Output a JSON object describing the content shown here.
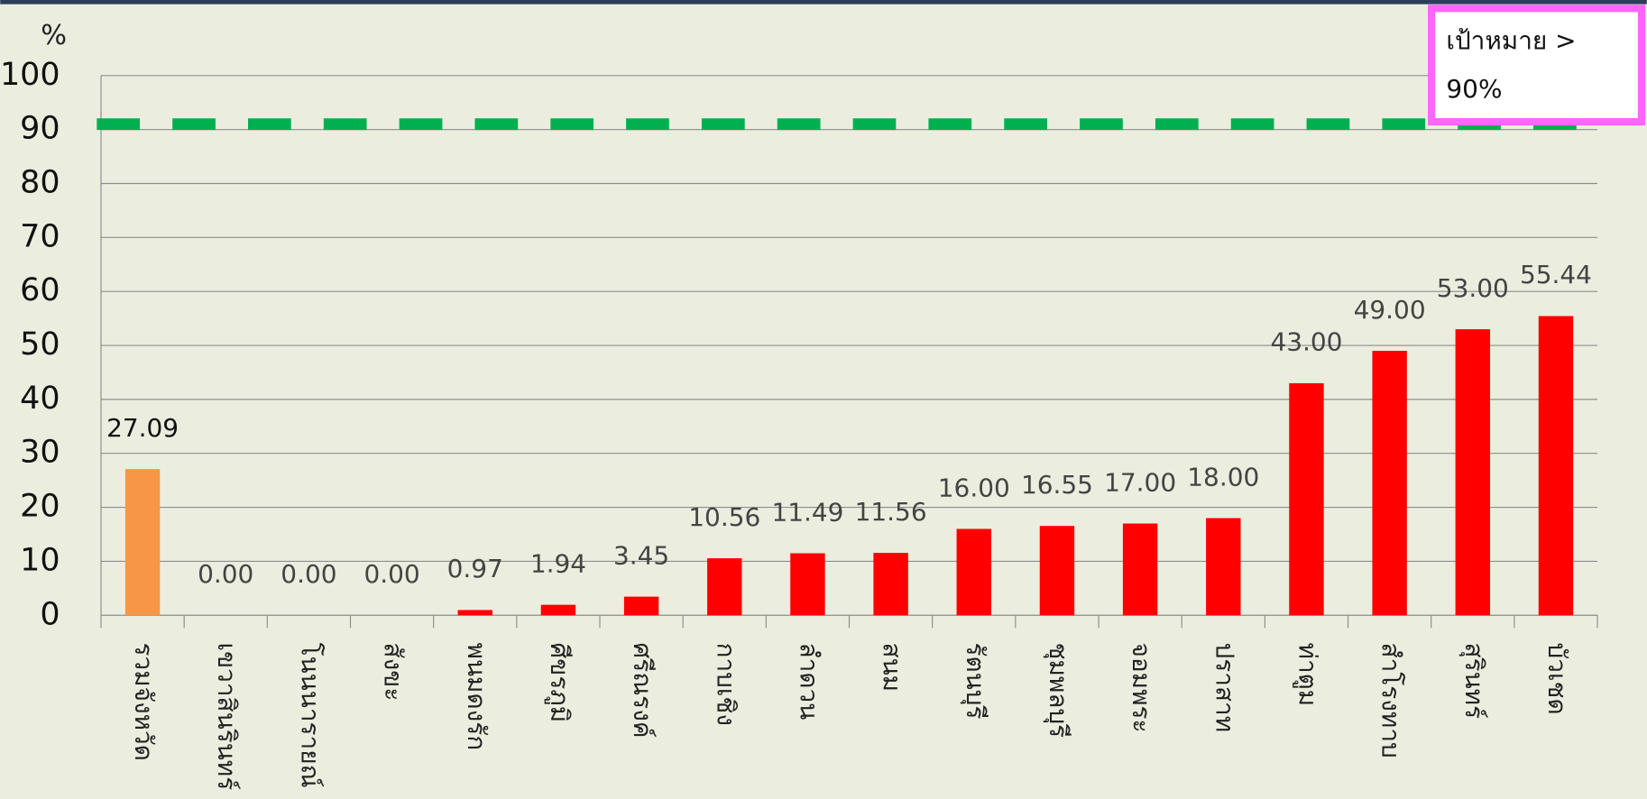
{
  "chart_data": {
    "type": "bar",
    "y_label": "%",
    "categories": [
      "รวมจังหวัด",
      "เขวาสินรินทร์",
      "โนนนารายณ์",
      "สังขะ",
      "พนมดงรัก",
      "ศีขรภูมิ",
      "ศรีณรงค์",
      "กาบเชิง",
      "ลำดวน",
      "สนม",
      "รัตนบุรี",
      "ชุมพลบุรี",
      "จอมพระ",
      "ปราสาท",
      "ท่าตูม",
      "สำโรงทาบ",
      "สุรินทร์",
      "บัวเชด"
    ],
    "values": [
      27.09,
      0,
      0,
      0,
      0.97,
      1.94,
      3.45,
      10.56,
      11.49,
      11.56,
      16,
      16.55,
      17,
      18,
      43,
      49,
      53,
      55.44
    ],
    "value_labels": [
      "27.09",
      "0.00",
      "0.00",
      "0.00",
      "0.97",
      "1.94",
      "3.45",
      "10.56",
      "11.49",
      "11.56",
      "16.00",
      "16.55",
      "17.00",
      "18.00",
      "43.00",
      "49.00",
      "53.00",
      "55.44"
    ],
    "colors": [
      "#f79646",
      "#ff0000",
      "#ff0000",
      "#ff0000",
      "#ff0000",
      "#ff0000",
      "#ff0000",
      "#ff0000",
      "#ff0000",
      "#ff0000",
      "#ff0000",
      "#ff0000",
      "#ff0000",
      "#ff0000",
      "#ff0000",
      "#ff0000",
      "#ff0000",
      "#ff0000"
    ],
    "ylim": [
      0,
      100
    ],
    "yticks": [
      0,
      10,
      20,
      30,
      40,
      50,
      60,
      70,
      80,
      90,
      100
    ],
    "grid": true,
    "target_line": {
      "value": 91,
      "color": "#00b050"
    },
    "annotation": [
      "เป้าหมาย >",
      "90%"
    ]
  }
}
